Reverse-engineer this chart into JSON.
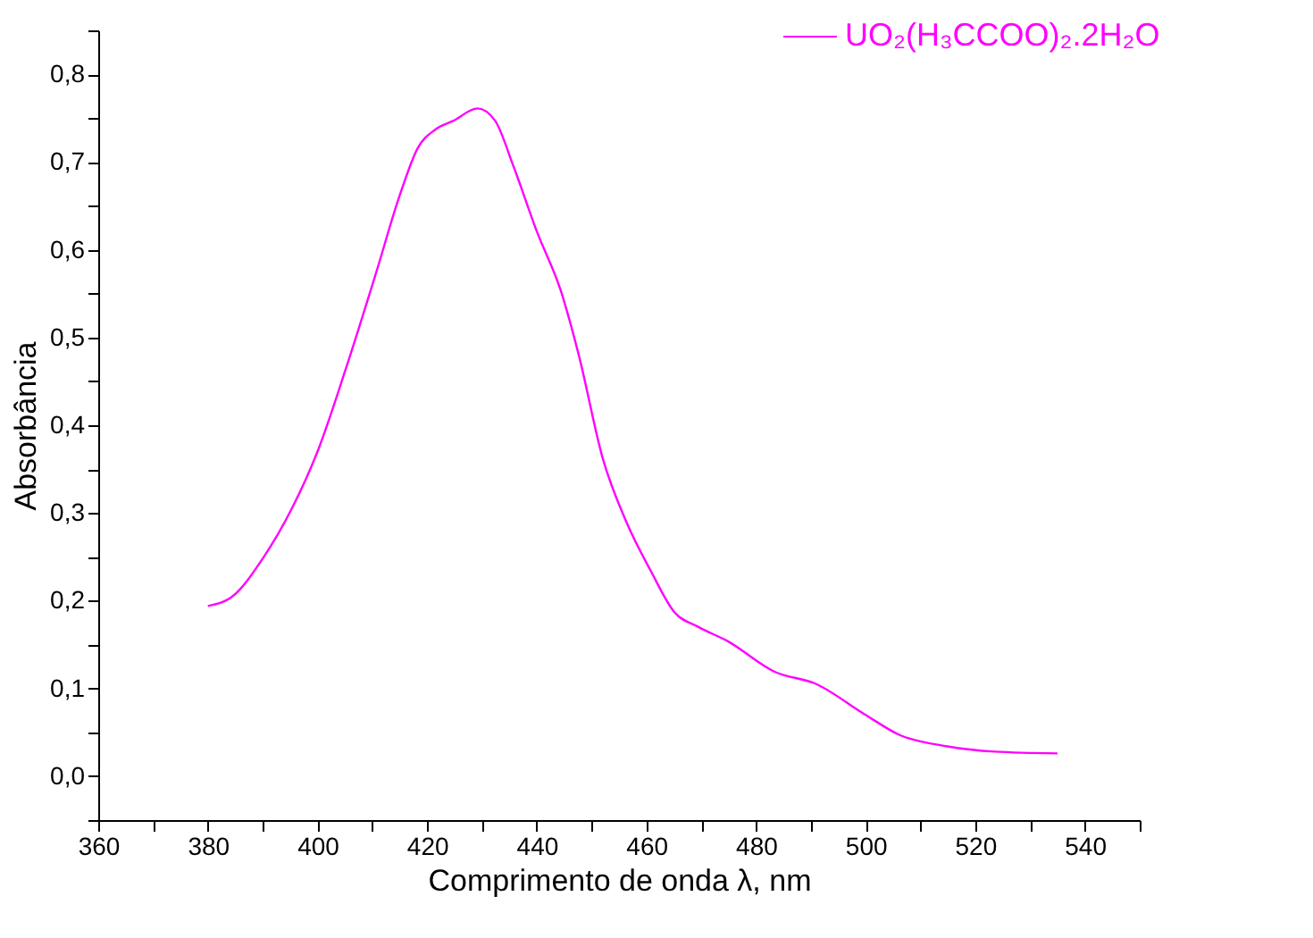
{
  "chart_data": {
    "type": "line",
    "xlabel": "Comprimento de onda λ, nm",
    "ylabel": "Absorbância",
    "xlim": [
      360,
      550
    ],
    "ylim": [
      -0.05,
      0.85
    ],
    "xticks": [
      360,
      {
        "value": 370,
        "label": null
      },
      380,
      {
        "value": 390,
        "label": null
      },
      400,
      {
        "value": 410,
        "label": null
      },
      420,
      {
        "value": 430,
        "label": null
      },
      440,
      {
        "value": 450,
        "label": null
      },
      460,
      {
        "value": 470,
        "label": null
      },
      480,
      {
        "value": 490,
        "label": null
      },
      500,
      {
        "value": 510,
        "label": null
      },
      520,
      {
        "value": 530,
        "label": null
      },
      540,
      {
        "value": 550,
        "label": null
      }
    ],
    "yticks": [
      {
        "value": -0.05,
        "label": null
      },
      {
        "value": 0,
        "label": "0,0"
      },
      {
        "value": 0.05,
        "label": null
      },
      {
        "value": 0.1,
        "label": "0,1"
      },
      {
        "value": 0.15,
        "label": null
      },
      {
        "value": 0.2,
        "label": "0,2"
      },
      {
        "value": 0.25,
        "label": null
      },
      {
        "value": 0.3,
        "label": "0,3"
      },
      {
        "value": 0.35,
        "label": null
      },
      {
        "value": 0.4,
        "label": "0,4"
      },
      {
        "value": 0.45,
        "label": null
      },
      {
        "value": 0.5,
        "label": "0,5"
      },
      {
        "value": 0.55,
        "label": null
      },
      {
        "value": 0.6,
        "label": "0,6"
      },
      {
        "value": 0.65,
        "label": null
      },
      {
        "value": 0.7,
        "label": "0,7"
      },
      {
        "value": 0.75,
        "label": null
      },
      {
        "value": 0.8,
        "label": "0,8"
      },
      {
        "value": 0.85,
        "label": null
      }
    ],
    "grid": false,
    "legend": "top right",
    "marker": "none",
    "line_style": "solid",
    "x": [
      380,
      384.5,
      390,
      395.4,
      400,
      405.2,
      410.7,
      415,
      418.3,
      421.5,
      424.8,
      429.2,
      432.4,
      435.7,
      440,
      444.4,
      447.7,
      452,
      456.4,
      460.8,
      465.1,
      469.5,
      474.8,
      483.4,
      491,
      499.7,
      506.2,
      514.9,
      523.6,
      535
    ],
    "series": [
      {
        "name": "UO₂(H₃CCOO)₂.2H₂O",
        "color": "#ff00ff",
        "values": [
          0.194,
          0.205,
          0.248,
          0.306,
          0.37,
          0.465,
          0.574,
          0.662,
          0.716,
          0.737,
          0.747,
          0.761,
          0.747,
          0.696,
          0.621,
          0.553,
          0.479,
          0.363,
          0.289,
          0.234,
          0.187,
          0.17,
          0.154,
          0.119,
          0.105,
          0.071,
          0.047,
          0.034,
          0.028,
          0.026
        ]
      }
    ]
  }
}
